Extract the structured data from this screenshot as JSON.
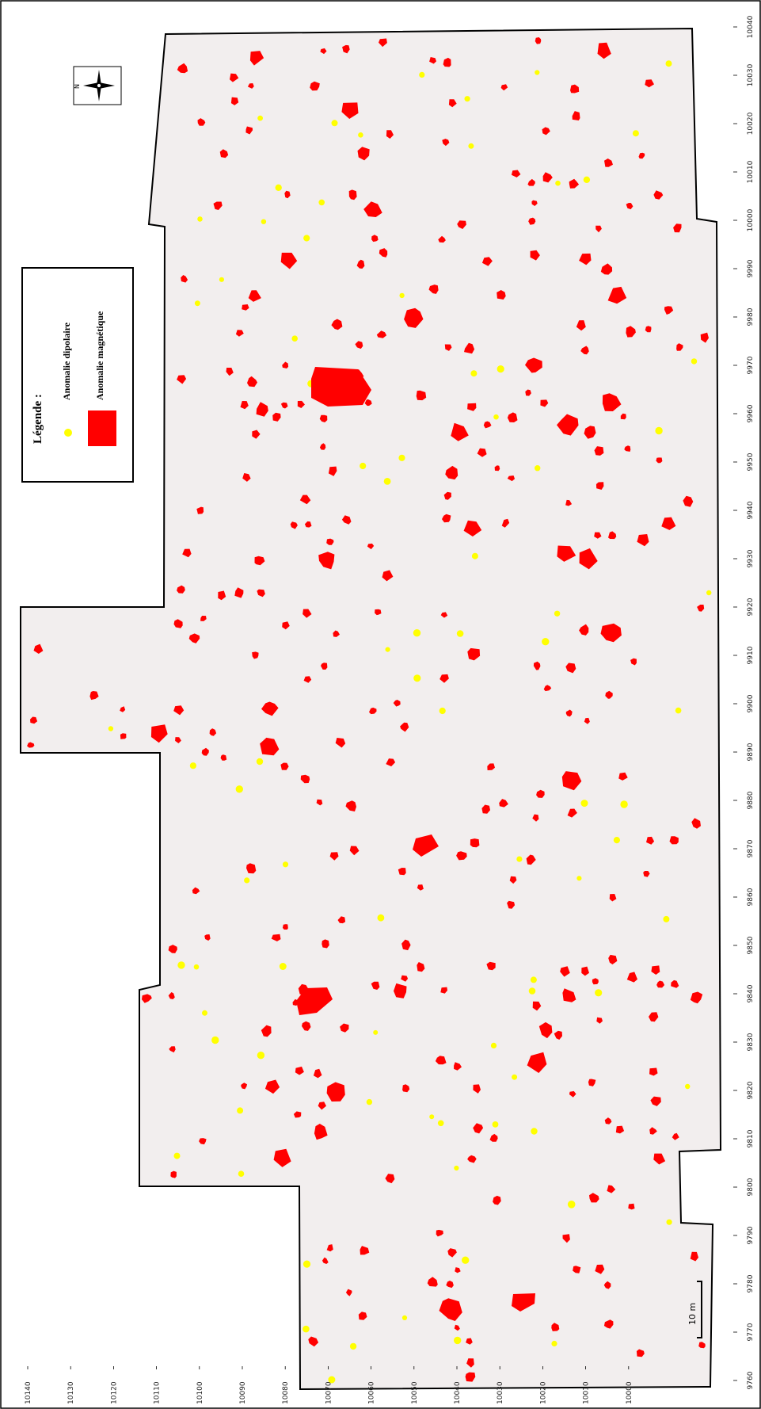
{
  "legend": {
    "title": "Légende :",
    "items": [
      {
        "label": "Anomalie dipolaire",
        "color": "#ffff00",
        "symbol": "dot"
      },
      {
        "label": "Anomalie magnétique",
        "color": "#ff0000",
        "symbol": "rect"
      }
    ]
  },
  "north_arrow": {
    "label": "N",
    "icon": "north-arrow-icon"
  },
  "scale_bar": {
    "label": "10 m"
  },
  "axes": {
    "left_ticks": [
      "10140",
      "10130",
      "10120",
      "10110",
      "10100",
      "10090",
      "10080",
      "10070",
      "10060",
      "10050",
      "10040",
      "10030",
      "10020",
      "10010",
      "10000"
    ],
    "right_ticks": [
      "10040",
      "10030",
      "10020",
      "10010",
      "10000",
      "9990",
      "9980",
      "9970",
      "9960",
      "9950",
      "9940",
      "9930",
      "9920",
      "9910",
      "9900",
      "9890",
      "9880",
      "9870",
      "9860",
      "9850",
      "9840",
      "9830",
      "9820",
      "9810",
      "9800",
      "9790",
      "9780",
      "9770",
      "9760"
    ]
  },
  "colors": {
    "survey_fill": "#f2eeee",
    "magnetic": "#ff0000",
    "dipolar": "#ffff00",
    "frame": "#000000"
  }
}
